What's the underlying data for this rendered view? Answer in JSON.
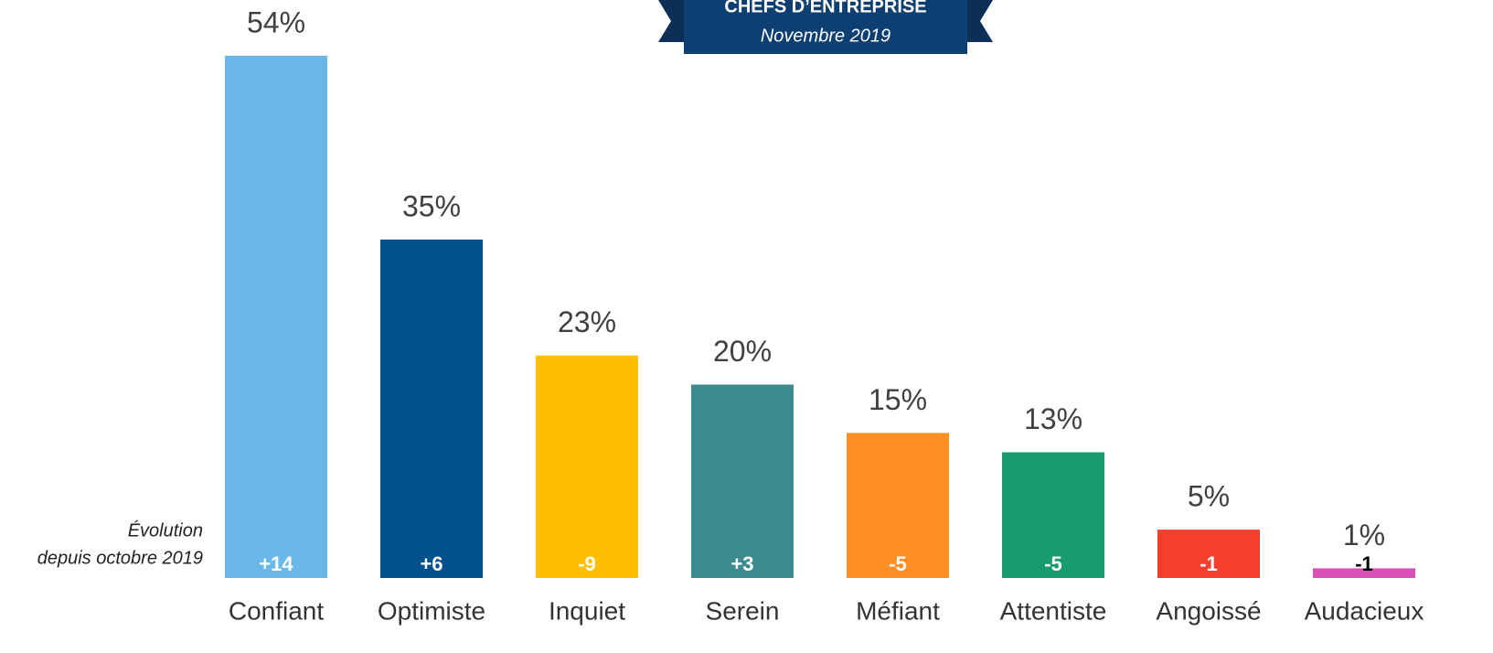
{
  "chart_data": {
    "type": "bar",
    "banner_title": "CHEFS D’ENTREPRISE",
    "banner_subtitle": "Novembre 2019",
    "annotation": [
      "Évolution",
      "depuis octobre 2019"
    ],
    "categories": [
      "Confiant",
      "Optimiste",
      "Inquiet",
      "Serein",
      "Méfiant",
      "Attentiste",
      "Angoissé",
      "Audacieux"
    ],
    "values": [
      54,
      35,
      23,
      20,
      15,
      13,
      5,
      1
    ],
    "value_labels": [
      "54%",
      "35%",
      "23%",
      "20%",
      "15%",
      "13%",
      "5%",
      "1%"
    ],
    "changes": [
      14,
      6,
      -9,
      3,
      -5,
      -5,
      -1,
      -1
    ],
    "change_labels": [
      "+14",
      "+6",
      "-9",
      "+3",
      "-5",
      "-5",
      "-1",
      "-1"
    ],
    "change_label_colors": [
      "#ffffff",
      "#ffffff",
      "#ffffff",
      "#ffffff",
      "#ffffff",
      "#ffffff",
      "#ffffff",
      "#000000"
    ],
    "colors": [
      "#69b8e8",
      "#02508c",
      "#fdbf00",
      "#3e8b8f",
      "#fd8f24",
      "#169c70",
      "#f63e2e",
      "#d94fb4"
    ]
  }
}
